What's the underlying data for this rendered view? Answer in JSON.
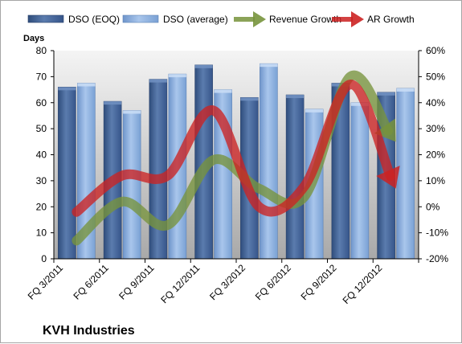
{
  "chart_data": {
    "type": "bar",
    "company": "KVH Industries",
    "ylabel_left": "Days",
    "categories": [
      "FQ 3/2011",
      "FQ 6/2011",
      "FQ 9/2011",
      "FQ 12/2011",
      "FQ 3/2012",
      "FQ 6/2012",
      "FQ 9/2012",
      "FQ 12/2012"
    ],
    "left_axis": {
      "min": 0,
      "max": 80,
      "step": 10
    },
    "right_axis": {
      "min": -20,
      "max": 60,
      "step": 10,
      "format": "percent"
    },
    "legend_position": "top",
    "grid": false,
    "series": [
      {
        "name": "DSO (EOQ)",
        "kind": "bar",
        "axis": "left",
        "color": "#4f6d9c",
        "values": [
          66,
          60.5,
          69,
          74.5,
          62,
          63,
          67.5,
          64
        ]
      },
      {
        "name": "DSO (average)",
        "kind": "bar",
        "axis": "left",
        "color": "#8eb4e3",
        "values": [
          67.5,
          57,
          71,
          65,
          75,
          57.5,
          60,
          65.5
        ]
      },
      {
        "name": "Revenue Growth",
        "kind": "line-arrow",
        "axis": "right",
        "color": "#77933c",
        "values": [
          -13,
          2,
          -7,
          18,
          7,
          4,
          50,
          25
        ]
      },
      {
        "name": "AR Growth",
        "kind": "line-arrow",
        "axis": "right",
        "color": "#cc2222",
        "values": [
          -2,
          12,
          12,
          37,
          0,
          8,
          47,
          7
        ]
      }
    ]
  }
}
